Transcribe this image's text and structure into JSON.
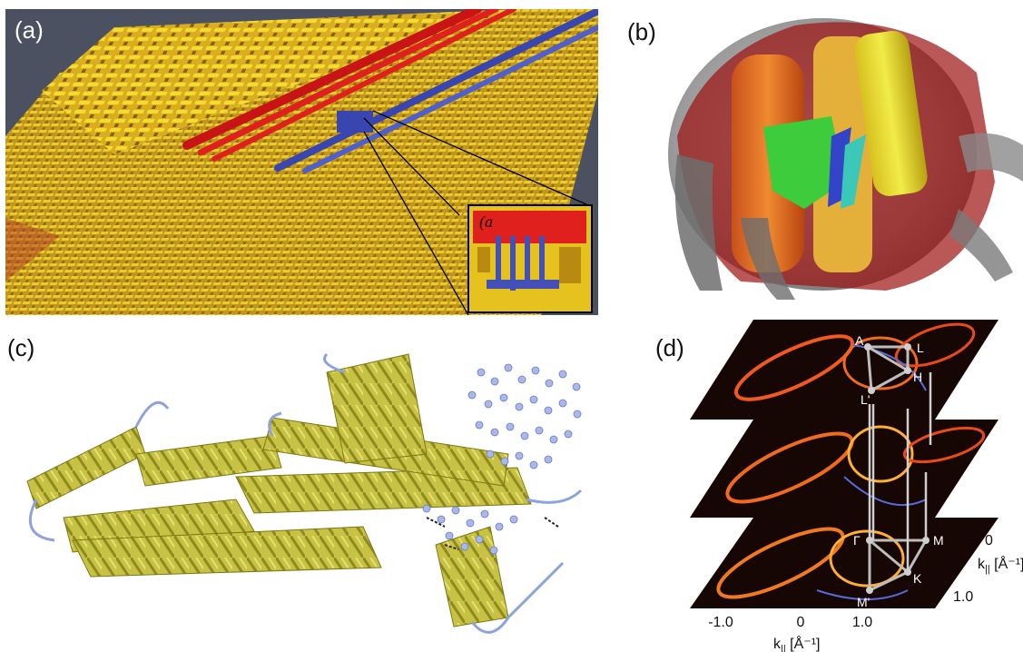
{
  "panels": {
    "a": {
      "label": "(a)",
      "inset_label": "(a"
    },
    "b": {
      "label": "(b)"
    },
    "c": {
      "label": "(c)"
    },
    "d": {
      "label": "(d)",
      "points_top": [
        "A",
        "L",
        "H",
        "L'"
      ],
      "points_bottom": [
        "Γ",
        "M",
        "K",
        "M'"
      ],
      "x_ticks": [
        "-1.0",
        "0",
        "1.0"
      ],
      "x_axis_label": "k",
      "x_axis_sub": "||",
      "x_axis_unit": " [Å⁻¹]",
      "y_ticks": [
        "0",
        "1.0"
      ],
      "y_axis_label": "k",
      "y_axis_sub": "||",
      "y_axis_unit": " [Å⁻¹]"
    }
  },
  "colors": {
    "circuit_background": "#4b5160",
    "yellow": "#e8c21c",
    "red": "#e0201c",
    "blue": "#4250b8",
    "helix": "#c7c243",
    "ligand": "#aab8e8",
    "heat_dark": "#160604",
    "heat_bright": "#ffd24a"
  }
}
